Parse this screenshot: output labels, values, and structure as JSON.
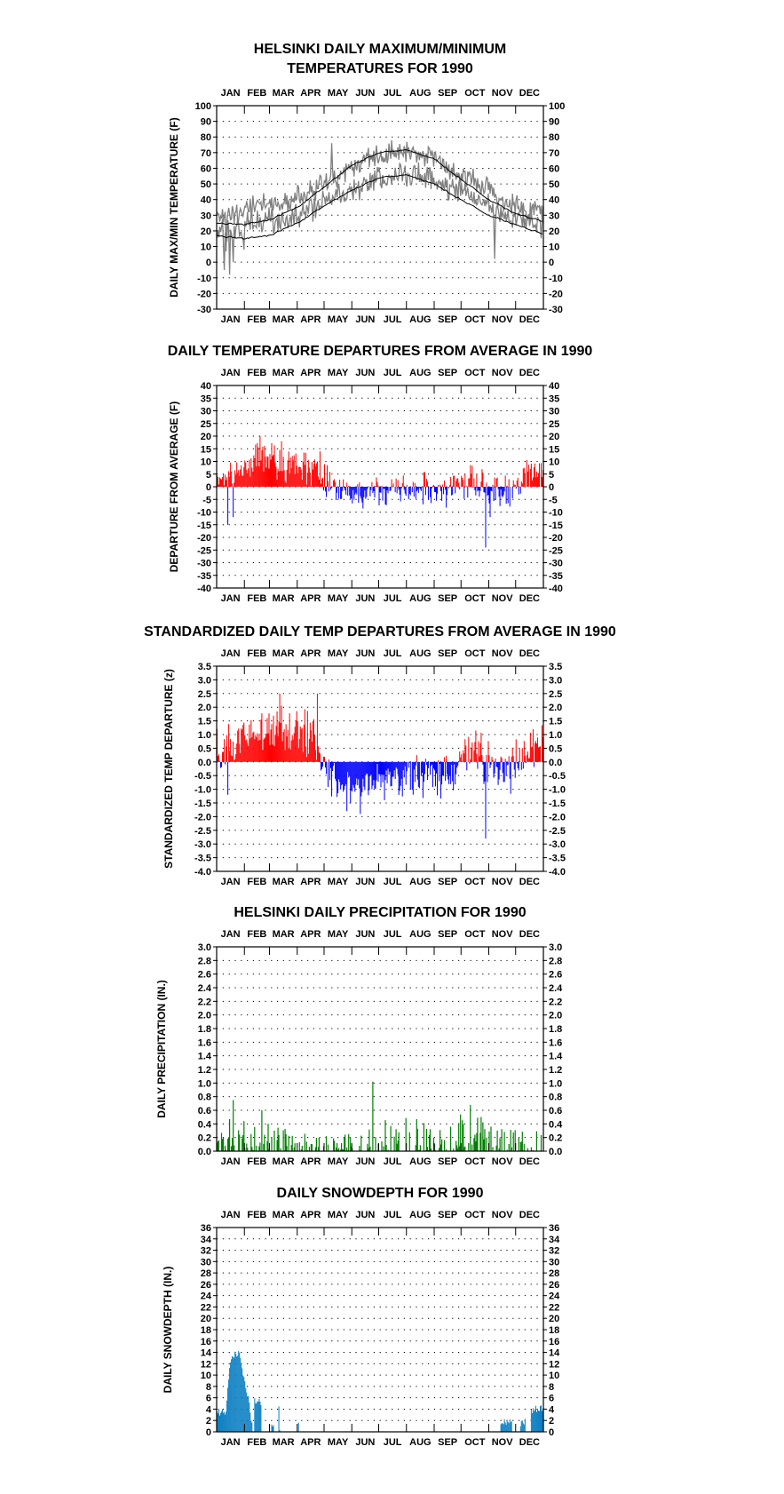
{
  "page": {
    "background": "#ffffff"
  },
  "chart_data": [
    {
      "type": "line",
      "title": "HELSINKI DAILY MAXIMUM/MINIMUM\nTEMPERATURES FOR 1990",
      "xlabel": "",
      "ylabel": "DAILY MAX/MIN TEMPERATURE (F)",
      "ylim": [
        -30,
        100
      ],
      "yticks": [
        100,
        90,
        80,
        70,
        60,
        50,
        40,
        30,
        20,
        10,
        0,
        -10,
        -20,
        -30
      ],
      "ytick_labels": [
        "100",
        "90",
        "80",
        "70",
        "60",
        "50",
        "40",
        "30",
        "20",
        "10",
        "0",
        "-10",
        "-20",
        "-30"
      ],
      "right_axis": true,
      "months": [
        "JAN",
        "FEB",
        "MAR",
        "APR",
        "MAY",
        "JUN",
        "JUL",
        "AUG",
        "SEP",
        "OCT",
        "NOV",
        "DEC"
      ],
      "grid": "dotted",
      "colors": {
        "observed": "#808080",
        "normals": "#000000"
      },
      "normal_max": [
        25,
        24,
        27,
        35,
        48,
        62,
        70,
        72,
        66,
        53,
        40,
        31,
        26
      ],
      "normal_min": [
        17,
        15,
        17,
        25,
        36,
        46,
        54,
        56,
        50,
        40,
        30,
        24,
        18
      ],
      "series": [
        {
          "kind": "max",
          "monthly_means": [
            30,
            37,
            37,
            45,
            56,
            67,
            69,
            71,
            60,
            52,
            39,
            32
          ],
          "spread": 8,
          "extremes": [
            [
              10,
              7
            ],
            [
              52,
              44
            ],
            [
              128,
              76
            ],
            [
              195,
              78
            ]
          ]
        },
        {
          "kind": "min",
          "monthly_means": [
            20,
            27,
            27,
            34,
            43,
            51,
            54,
            57,
            48,
            42,
            30,
            24
          ],
          "spread": 9,
          "extremes": [
            [
              8,
              -5
            ],
            [
              14,
              -8
            ],
            [
              18,
              0
            ],
            [
              30,
              8
            ],
            [
              310,
              2
            ]
          ]
        }
      ]
    },
    {
      "type": "bar",
      "title": "DAILY TEMPERATURE DEPARTURES FROM AVERAGE IN 1990",
      "xlabel": "",
      "ylabel": "DEPARTURE FROM AVERAGE (F)",
      "ylim": [
        -40,
        40
      ],
      "yticks": [
        40,
        35,
        30,
        25,
        20,
        15,
        10,
        5,
        0,
        -5,
        -10,
        -15,
        -20,
        -25,
        -30,
        -35,
        -40
      ],
      "ytick_labels": [
        "40",
        "35",
        "30",
        "25",
        "20",
        "15",
        "10",
        "5",
        "0",
        "-5",
        "-10",
        "-15",
        "-20",
        "-25",
        "-30",
        "-35",
        "-40"
      ],
      "right_axis": true,
      "months": [
        "JAN",
        "FEB",
        "MAR",
        "APR",
        "MAY",
        "JUN",
        "JUL",
        "AUG",
        "SEP",
        "OCT",
        "NOV",
        "DEC"
      ],
      "grid": "dotted",
      "colors": {
        "positive": "#ff0000",
        "negative": "#0000ff"
      },
      "monthly_means": [
        5,
        12,
        9,
        7,
        -3,
        -3,
        -2,
        -1,
        -1,
        3,
        -3,
        5
      ],
      "spread": 5,
      "extremes": [
        [
          12,
          -15
        ],
        [
          18,
          -12
        ],
        [
          48,
          20
        ],
        [
          72,
          18
        ],
        [
          115,
          14
        ],
        [
          300,
          -24
        ],
        [
          305,
          -12
        ]
      ]
    },
    {
      "type": "bar",
      "title": "STANDARDIZED DAILY TEMP DEPARTURES FROM AVERAGE IN 1990",
      "xlabel": "",
      "ylabel": "STANDARDIZED TEMP DEPARTURE (z)",
      "ylim": [
        -4.0,
        3.5
      ],
      "yticks": [
        3.5,
        3.0,
        2.5,
        2.0,
        1.5,
        1.0,
        0.5,
        0.0,
        -0.5,
        -1.0,
        -1.5,
        -2.0,
        -2.5,
        -3.0,
        -3.5,
        -4.0
      ],
      "ytick_labels": [
        "3.5",
        "3.0",
        "2.5",
        "2.0",
        "1.5",
        "1.0",
        "0.5",
        "0.0",
        "-0.5",
        "-1.0",
        "-1.5",
        "-2.0",
        "-2.5",
        "-3.0",
        "-3.5",
        "-4.0"
      ],
      "right_axis": true,
      "months": [
        "JAN",
        "FEB",
        "MAR",
        "APR",
        "MAY",
        "JUN",
        "JUL",
        "AUG",
        "SEP",
        "OCT",
        "NOV",
        "DEC"
      ],
      "grid": "dotted",
      "colors": {
        "positive": "#ff0000",
        "negative": "#0000ff"
      },
      "monthly_means": [
        0.5,
        1.1,
        1.2,
        1.0,
        -0.9,
        -0.8,
        -0.4,
        -0.5,
        -0.6,
        0.5,
        -0.6,
        0.5
      ],
      "spread": 0.6,
      "extremes": [
        [
          12,
          -1.2
        ],
        [
          70,
          2.5
        ],
        [
          112,
          2.5
        ],
        [
          300,
          -2.8
        ],
        [
          160,
          -1.9
        ],
        [
          145,
          -1.8
        ]
      ]
    },
    {
      "type": "bar",
      "title": "HELSINKI DAILY PRECIPITATION FOR 1990",
      "xlabel": "",
      "ylabel": "DAILY PRECIPITATION (IN.)",
      "ylim": [
        0,
        3.0
      ],
      "yticks": [
        3.0,
        2.8,
        2.6,
        2.4,
        2.2,
        2.0,
        1.8,
        1.6,
        1.4,
        1.2,
        1.0,
        0.8,
        0.6,
        0.4,
        0.2,
        0.0
      ],
      "ytick_labels": [
        "3.0",
        "2.8",
        "2.6",
        "2.4",
        "2.2",
        "2.0",
        "1.8",
        "1.6",
        "1.4",
        "1.2",
        "1.0",
        "0.8",
        "0.6",
        "0.4",
        "0.2",
        "0.0"
      ],
      "right_axis": true,
      "months": [
        "JAN",
        "FEB",
        "MAR",
        "APR",
        "MAY",
        "JUN",
        "JUL",
        "AUG",
        "SEP",
        "OCT",
        "NOV",
        "DEC"
      ],
      "grid": "dotted",
      "colors": {
        "bars": "#007f00"
      },
      "monthly_max": [
        0.5,
        0.55,
        0.35,
        0.25,
        0.2,
        0.4,
        0.6,
        0.5,
        0.55,
        0.55,
        0.4,
        0.3
      ],
      "extremes": [
        [
          18,
          0.75
        ],
        [
          35,
          0.58
        ],
        [
          50,
          0.6
        ],
        [
          174,
          1.02
        ],
        [
          265,
          0.6
        ],
        [
          283,
          0.68
        ],
        [
          296,
          0.65
        ]
      ]
    },
    {
      "type": "bar",
      "title": "DAILY SNOWDEPTH FOR 1990",
      "xlabel": "",
      "ylabel": "DAILY SNOWDEPTH (IN.)",
      "ylim": [
        0,
        36
      ],
      "yticks": [
        36,
        34,
        32,
        30,
        28,
        26,
        24,
        22,
        20,
        18,
        16,
        14,
        12,
        10,
        8,
        6,
        4,
        2,
        0
      ],
      "ytick_labels": [
        "36",
        "34",
        "32",
        "30",
        "28",
        "26",
        "24",
        "22",
        "20",
        "18",
        "16",
        "14",
        "12",
        "10",
        "8",
        "6",
        "4",
        "2",
        "0"
      ],
      "right_axis": true,
      "months": [
        "JAN",
        "FEB",
        "MAR",
        "APR",
        "MAY",
        "JUN",
        "JUL",
        "AUG",
        "SEP",
        "OCT",
        "NOV",
        "DEC"
      ],
      "grid": "dotted",
      "colors": {
        "bars": "#0a7fc2"
      },
      "segments": [
        {
          "start": 1,
          "end": 10,
          "from": 3.5,
          "to": 3.5
        },
        {
          "start": 11,
          "end": 16,
          "from": 3.5,
          "to": 13
        },
        {
          "start": 17,
          "end": 25,
          "from": 13,
          "to": 14
        },
        {
          "start": 26,
          "end": 35,
          "from": 14,
          "to": 6
        },
        {
          "start": 36,
          "end": 40,
          "from": 6,
          "to": 1
        },
        {
          "start": 43,
          "end": 50,
          "from": 5.5,
          "to": 5
        },
        {
          "start": 62,
          "end": 64,
          "from": 1,
          "to": 1
        },
        {
          "start": 70,
          "end": 71,
          "from": 4,
          "to": 0.5
        },
        {
          "start": 92,
          "end": 92,
          "from": 2,
          "to": 2
        },
        {
          "start": 318,
          "end": 330,
          "from": 1.5,
          "to": 2
        },
        {
          "start": 340,
          "end": 345,
          "from": 1,
          "to": 2
        },
        {
          "start": 352,
          "end": 365,
          "from": 4,
          "to": 4
        }
      ]
    }
  ]
}
